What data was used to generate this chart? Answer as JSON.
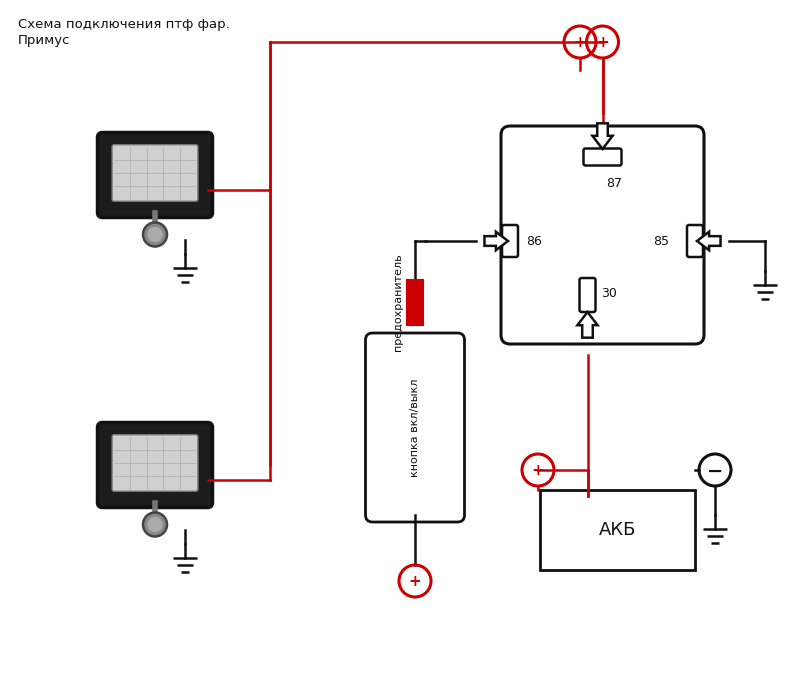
{
  "title_line1": "Схема подключения птф фар.",
  "title_line2": "Примус",
  "relay_87": "87",
  "relay_86": "86",
  "relay_85": "85",
  "relay_30": "30",
  "battery_label": "АКБ",
  "button_label": "кнопка вкл/выкл",
  "fuse_label": "предохранитель",
  "bg_color": "#ffffff",
  "black": "#111111",
  "red": "#cc0000"
}
